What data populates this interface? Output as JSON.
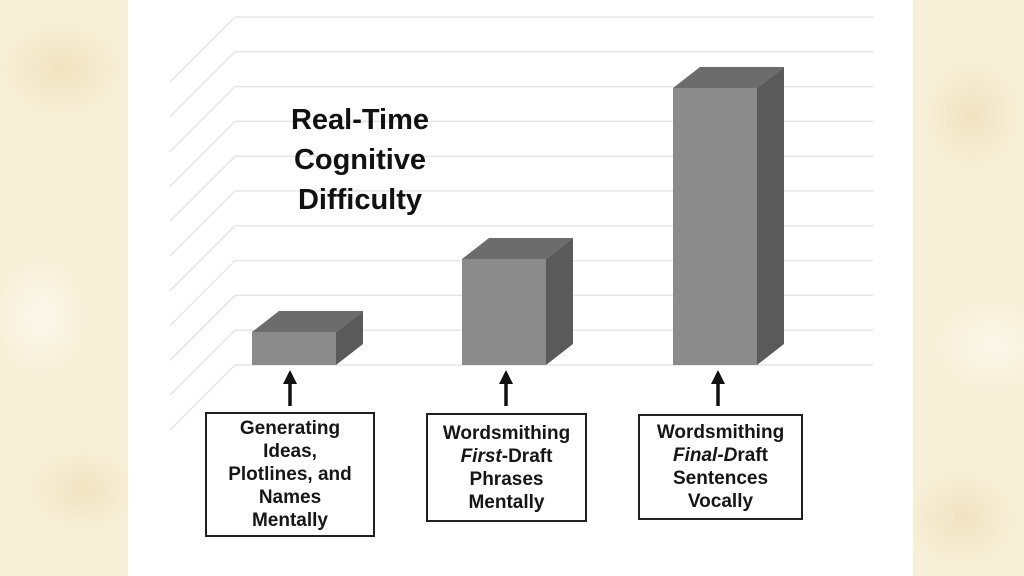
{
  "slide": {
    "background_color": "#f7efd7",
    "panel_color": "#ffffff"
  },
  "chart": {
    "title_lines": [
      "Real-Time",
      "Cognitive",
      "Difficulty"
    ],
    "colors": {
      "bar_front": "#8b8b8b",
      "bar_top": "#6c6c6c",
      "bar_side": "#5a5a5a",
      "gridline": "#e6e6e6",
      "arrow": "#111111",
      "text": "#111111"
    }
  },
  "chart_data": {
    "type": "bar",
    "style": "3d-boxes",
    "title": "Real-Time Cognitive Difficulty",
    "categories": [
      "Generating Ideas, Plotlines, and Names Mentally",
      "Wordsmithing First-Draft Phrases Mentally",
      "Wordsmithing Final-Draft Sentences Vocally"
    ],
    "values": [
      1.0,
      3.2,
      8.4
    ],
    "values_note": "relative difficulty; axis is unlabeled, values estimated from bar heights",
    "xlabel": "",
    "ylabel": "",
    "axis_labels_visible": false,
    "legend": false,
    "gridlines": "light diagonal-to-horizontal 3D back-wall lines",
    "annotations": "each bar has an upward black arrow from its category label box"
  },
  "labels": [
    {
      "lines": [
        {
          "segments": [
            {
              "text": "Generating",
              "italic": false
            }
          ]
        },
        {
          "segments": [
            {
              "text": "Ideas,",
              "italic": false
            }
          ]
        },
        {
          "segments": [
            {
              "text": "Plotlines, and",
              "italic": false
            }
          ]
        },
        {
          "segments": [
            {
              "text": "Names",
              "italic": false
            }
          ]
        },
        {
          "segments": [
            {
              "text": "Mentally",
              "italic": false
            }
          ]
        }
      ]
    },
    {
      "lines": [
        {
          "segments": [
            {
              "text": "Wordsmithing",
              "italic": false
            }
          ]
        },
        {
          "segments": [
            {
              "text": "First",
              "italic": true
            },
            {
              "text": "-Draft",
              "italic": false
            }
          ]
        },
        {
          "segments": [
            {
              "text": "Phrases",
              "italic": false
            }
          ]
        },
        {
          "segments": [
            {
              "text": "Mentally",
              "italic": false
            }
          ]
        }
      ]
    },
    {
      "lines": [
        {
          "segments": [
            {
              "text": "Wordsmithing",
              "italic": false
            }
          ]
        },
        {
          "segments": [
            {
              "text": "Final-D",
              "italic": true
            },
            {
              "text": "raft",
              "italic": false
            }
          ]
        },
        {
          "segments": [
            {
              "text": "Sentences",
              "italic": false
            }
          ]
        },
        {
          "segments": [
            {
              "text": "Vocally",
              "italic": false
            }
          ]
        }
      ]
    }
  ],
  "icons": {
    "arrow": "up-arrow-icon"
  }
}
